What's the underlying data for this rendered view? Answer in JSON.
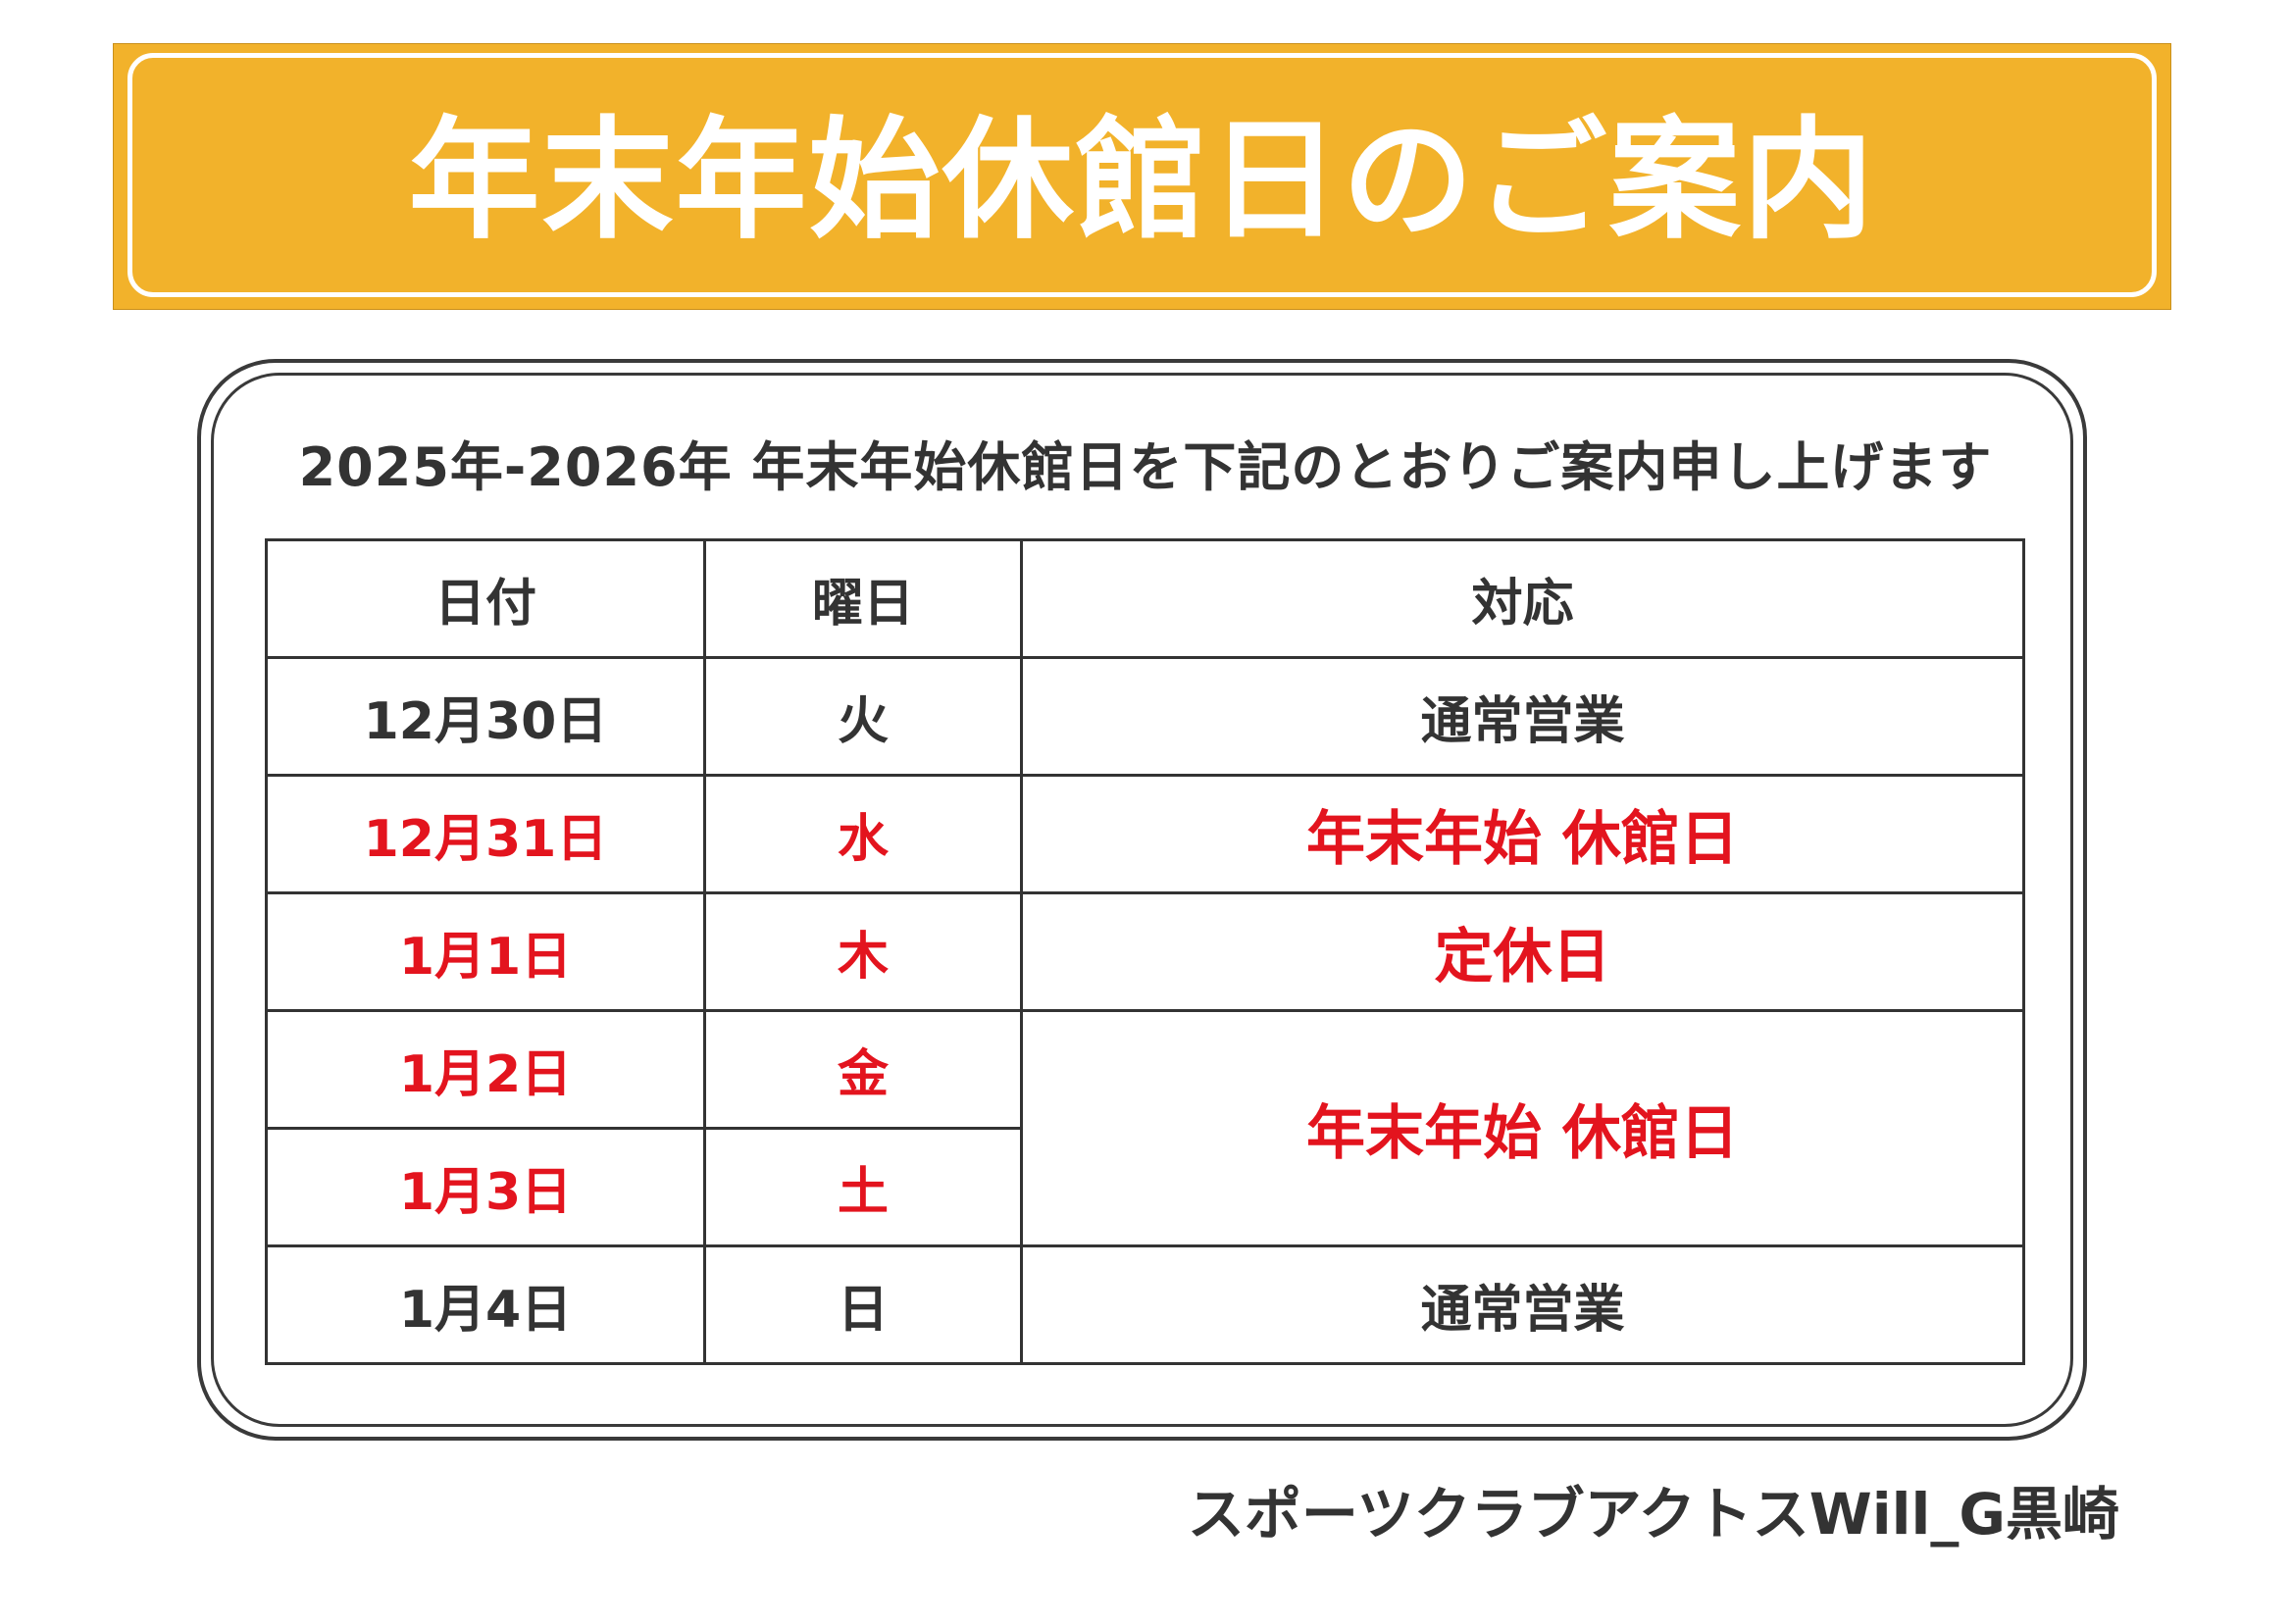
{
  "banner": {
    "title": "年末年始休館日のご案内"
  },
  "notice": {
    "subtitle": "2025年-2026年 年末年始休館日を下記のとおりご案内申し上げます"
  },
  "table": {
    "headers": {
      "date": "日付",
      "weekday": "曜日",
      "status": "対応"
    },
    "rows": [
      {
        "date": "12月30日",
        "weekday": "火",
        "status": "通常営業",
        "closed": false
      },
      {
        "date": "12月31日",
        "weekday": "水",
        "status": "年末年始 休館日",
        "closed": true
      },
      {
        "date": "1月1日",
        "weekday": "木",
        "status": "定休日",
        "closed": true
      },
      {
        "date": "1月2日",
        "weekday": "金",
        "status": "年末年始 休館日",
        "closed": true
      },
      {
        "date": "1月3日",
        "weekday": "土",
        "status": "",
        "closed": true
      },
      {
        "date": "1月4日",
        "weekday": "日",
        "status": "通常営業",
        "closed": false
      }
    ]
  },
  "footer": {
    "club_name": "スポーツクラブアクトスWill_G黒崎"
  },
  "colors": {
    "banner": "#F2B22B",
    "closed_text": "#E3141E",
    "normal_text": "#333333"
  }
}
